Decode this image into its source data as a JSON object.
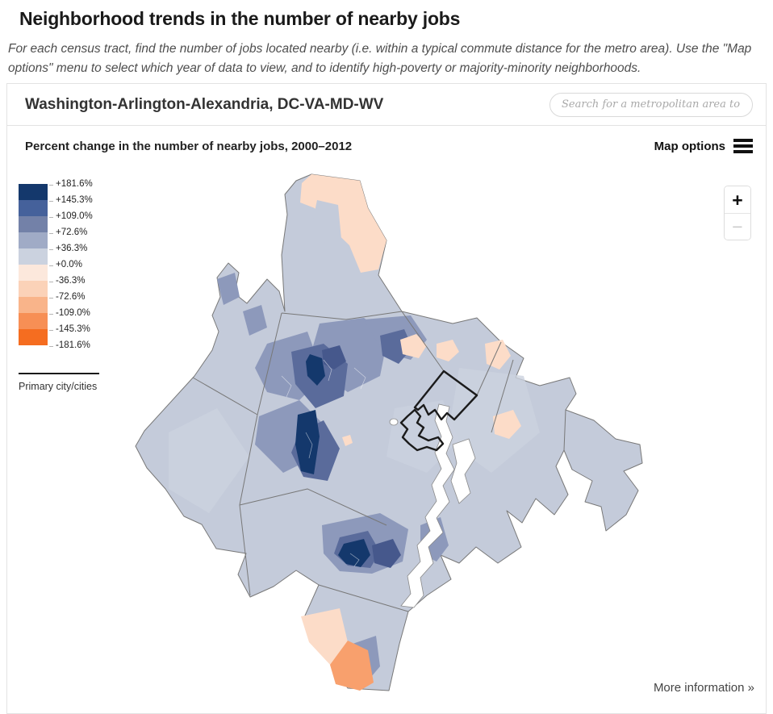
{
  "header": {
    "title": "Neighborhood trends in the number of nearby jobs",
    "subtitle": "For each census tract, find the number of jobs located nearby (i.e. within a typical commute distance for the metro area). Use the \"Map options\" menu to select which year of data to view, and to identify high-poverty or majority-minority neighborhoods."
  },
  "card": {
    "metro_title": "Washington-Arlington-Alexandria, DC-VA-MD-WV",
    "search": {
      "placeholder": "Search for a metropolitan area to map"
    },
    "toolbar": {
      "map_title": "Percent change in the number of nearby jobs, 2000–2012",
      "map_options_label": "Map options"
    },
    "more_info_label": "More information »"
  },
  "legend": {
    "labels": [
      "+181.6%",
      "+145.3%",
      "+109.0%",
      "+72.6%",
      "+36.3%",
      "+0.0%",
      "-36.3%",
      "-72.6%",
      "-109.0%",
      "-145.3%",
      "-181.6%"
    ],
    "colors": [
      "#14386c",
      "#45619b",
      "#7381a8",
      "#a0abc6",
      "#cbd2df",
      "#fce8dc",
      "#fbd2b8",
      "#f9b48a",
      "#f78f55",
      "#f56d20"
    ],
    "primary_city_label": "Primary city/cities"
  },
  "zoom_controls": {
    "zoom_in_label": "+",
    "zoom_out_label": "−"
  },
  "palette": {
    "base": "#c4cbda",
    "base2": "#ccd2df",
    "mid": "#8d99bb",
    "slate": "#5a6b9b",
    "slate2": "#46588c",
    "navy": "#14386c",
    "peach": "#fcdcc8",
    "orange": "#f8a06d",
    "water": "#ffffff",
    "county_line": "#787878",
    "primary_outline": "#1b1b1b"
  }
}
